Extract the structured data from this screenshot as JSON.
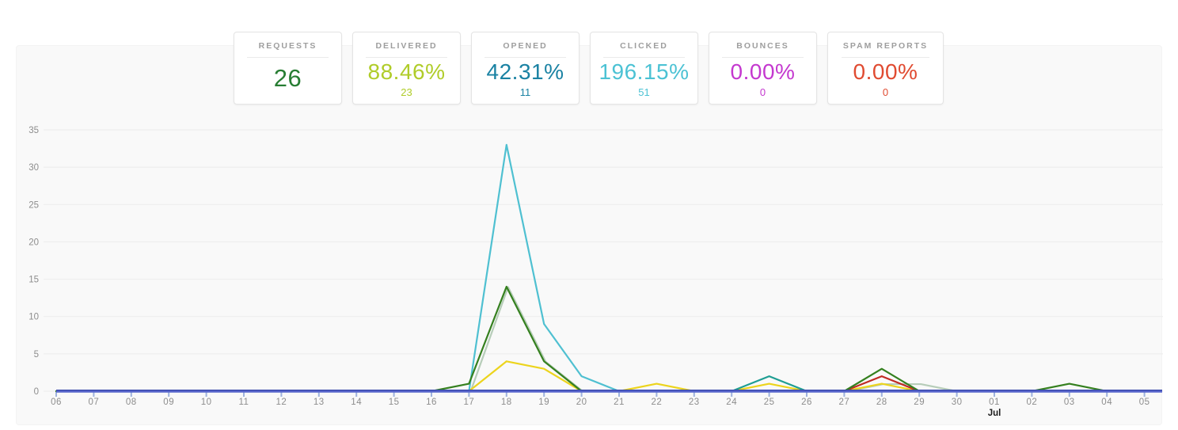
{
  "page": {
    "background": "#ffffff",
    "panel_background": "#f9f9f9",
    "gridline_color": "#ececec"
  },
  "cards": [
    {
      "label": "REQUESTS",
      "value": "26",
      "sub": "",
      "color": "#277d33"
    },
    {
      "label": "DELIVERED",
      "value": "88.46%",
      "sub": "23",
      "color": "#b0cc29"
    },
    {
      "label": "OPENED",
      "value": "42.31%",
      "sub": "11",
      "color": "#1a82a3"
    },
    {
      "label": "CLICKED",
      "value": "196.15%",
      "sub": "51",
      "color": "#4cc2d4"
    },
    {
      "label": "BOUNCES",
      "value": "0.00%",
      "sub": "0",
      "color": "#c438cf"
    },
    {
      "label": "SPAM REPORTS",
      "value": "0.00%",
      "sub": "0",
      "color": "#e04b31"
    }
  ],
  "chart_data": {
    "type": "line",
    "title": "",
    "xlabel": "",
    "ylabel": "",
    "categories": [
      "06",
      "07",
      "08",
      "09",
      "10",
      "11",
      "12",
      "13",
      "14",
      "15",
      "16",
      "17",
      "18",
      "19",
      "20",
      "21",
      "22",
      "23",
      "24",
      "25",
      "26",
      "27",
      "28",
      "29",
      "30",
      "01",
      "02",
      "03",
      "04",
      "05"
    ],
    "month_label": {
      "text": "Jul",
      "under_index": 25
    },
    "y_ticks": [
      0,
      5,
      10,
      15,
      20,
      25,
      30,
      35
    ],
    "ylim": [
      0,
      35
    ],
    "grid": true,
    "legend_position": "none",
    "series": [
      {
        "name": "pale-green-line",
        "color": "#b7cdb9",
        "values": [
          0,
          0,
          0,
          0,
          0,
          0,
          0,
          0,
          0,
          0,
          0,
          0,
          14,
          4,
          0,
          0,
          0,
          0,
          0,
          0,
          0,
          0,
          1,
          1,
          0,
          0,
          0,
          0,
          0,
          0
        ]
      },
      {
        "name": "yellow-line",
        "color": "#ecd41d",
        "values": [
          0,
          0,
          0,
          0,
          0,
          0,
          0,
          0,
          0,
          0,
          0,
          0,
          4,
          3,
          0,
          0,
          1,
          0,
          0,
          1,
          0,
          0,
          1,
          0,
          0,
          0,
          0,
          0,
          0,
          0
        ]
      },
      {
        "name": "red-line",
        "color": "#c02b23",
        "values": [
          0,
          0,
          0,
          0,
          0,
          0,
          0,
          0,
          0,
          0,
          0,
          0,
          0,
          0,
          0,
          0,
          0,
          0,
          0,
          0,
          0,
          0,
          2,
          0,
          0,
          0,
          0,
          0,
          0,
          0
        ]
      },
      {
        "name": "teal-line",
        "color": "#1f9e93",
        "values": [
          0,
          0,
          0,
          0,
          0,
          0,
          0,
          0,
          0,
          0,
          0,
          0,
          0,
          0,
          0,
          0,
          0,
          0,
          0,
          2,
          0,
          0,
          0,
          0,
          0,
          0,
          0,
          0,
          0,
          0
        ]
      },
      {
        "name": "cyan-line",
        "color": "#4fc0d1",
        "values": [
          0,
          0,
          0,
          0,
          0,
          0,
          0,
          0,
          0,
          0,
          0,
          0,
          33,
          9,
          2,
          0,
          0,
          0,
          0,
          0,
          0,
          0,
          0,
          0,
          0,
          0,
          0,
          0,
          0,
          0
        ]
      },
      {
        "name": "dark-green-line",
        "color": "#35801f",
        "values": [
          0,
          0,
          0,
          0,
          0,
          0,
          0,
          0,
          0,
          0,
          0,
          1,
          14,
          4,
          0,
          0,
          0,
          0,
          0,
          0,
          0,
          0,
          3,
          0,
          0,
          0,
          0,
          1,
          0,
          0
        ]
      },
      {
        "name": "baseline-purple-line",
        "color": "#5b68cf",
        "values": [
          0,
          0,
          0,
          0,
          0,
          0,
          0,
          0,
          0,
          0,
          0,
          0,
          0,
          0,
          0,
          0,
          0,
          0,
          0,
          0,
          0,
          0,
          0,
          0,
          0,
          0,
          0,
          0,
          0,
          0
        ]
      }
    ],
    "axis": {
      "top_line_color": "#3b4aac",
      "tick_color": "#9fb3dd",
      "label_color": "#8d8d8d",
      "month_label_color": "#1b1b1b"
    }
  }
}
